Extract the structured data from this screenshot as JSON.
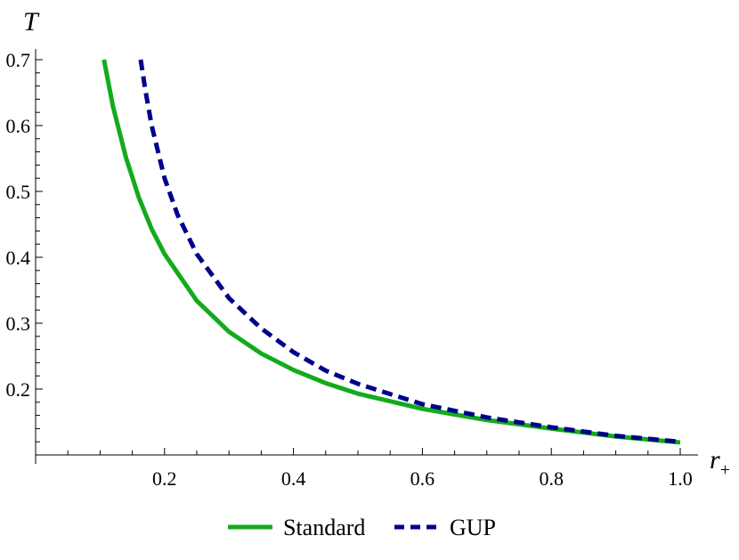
{
  "chart_data": {
    "type": "line",
    "title": "",
    "xlabel": "r",
    "xlabel_sub": "+",
    "ylabel": "T",
    "xlim": [
      0.0,
      1.0
    ],
    "ylim": [
      0.1,
      0.7
    ],
    "grid": false,
    "legend_position": "bottom",
    "x_ticks": [
      {
        "value": 0.2,
        "label": "0.2"
      },
      {
        "value": 0.4,
        "label": "0.4"
      },
      {
        "value": 0.6,
        "label": "0.6"
      },
      {
        "value": 0.8,
        "label": "0.8"
      },
      {
        "value": 1.0,
        "label": "1.0"
      }
    ],
    "y_ticks": [
      {
        "value": 0.2,
        "label": "0.2"
      },
      {
        "value": 0.3,
        "label": "0.3"
      },
      {
        "value": 0.4,
        "label": "0.4"
      },
      {
        "value": 0.5,
        "label": "0.5"
      },
      {
        "value": 0.6,
        "label": "0.6"
      },
      {
        "value": 0.7,
        "label": "0.7"
      }
    ],
    "series": [
      {
        "name": "Standard",
        "color": "#13ab1c",
        "style": "solid",
        "x": [
          0.106,
          0.12,
          0.14,
          0.16,
          0.18,
          0.2,
          0.25,
          0.3,
          0.35,
          0.4,
          0.45,
          0.5,
          0.6,
          0.7,
          0.8,
          0.9,
          1.0
        ],
        "y": [
          0.7,
          0.629,
          0.552,
          0.491,
          0.443,
          0.405,
          0.334,
          0.287,
          0.254,
          0.229,
          0.209,
          0.193,
          0.17,
          0.153,
          0.14,
          0.128,
          0.119
        ]
      },
      {
        "name": "GUP",
        "color": "#00008b",
        "style": "dashed",
        "x": [
          0.163,
          0.17,
          0.18,
          0.2,
          0.22,
          0.25,
          0.3,
          0.35,
          0.4,
          0.45,
          0.5,
          0.6,
          0.7,
          0.8,
          0.9,
          1.0
        ],
        "y": [
          0.7,
          0.655,
          0.6,
          0.52,
          0.465,
          0.405,
          0.338,
          0.292,
          0.256,
          0.228,
          0.208,
          0.177,
          0.157,
          0.142,
          0.129,
          0.12
        ]
      }
    ]
  }
}
